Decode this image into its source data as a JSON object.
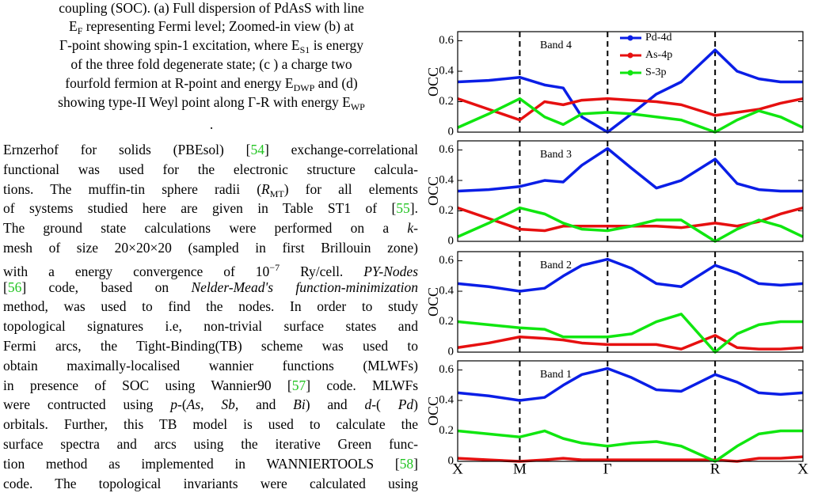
{
  "caption": {
    "lines": [
      [
        "coupling (SOC). (a) Full dispersion of PdAsS with line"
      ],
      [
        "E",
        "F",
        " representing Fermi level; Zoomed-in view (b) at"
      ],
      [
        "Γ-point showing spin-1 excitation, where E",
        "S1",
        " is energy"
      ],
      [
        "of the three fold degenerate state; (c ) a charge two"
      ],
      [
        "fourfold fermion at R-point and energy E",
        "DWP",
        " and (d)"
      ],
      [
        "showing type-II Weyl point along Γ-R with energy E",
        "WP"
      ],
      [
        "."
      ]
    ]
  },
  "paragraph": {
    "lines": [
      [
        "Ernzerhof for solids (PBEsol) [",
        "54",
        "] exchange-correlational"
      ],
      [
        "functional was used for the electronic structure calcula-"
      ],
      [
        "tions. The muffin-tin sphere radii (",
        "R",
        "MT",
        ") for all elements"
      ],
      [
        "of systems studied here are given in Table ST1 of [",
        "55",
        "]."
      ],
      [
        "The ground state calculations were performed on a ",
        "k",
        "-"
      ],
      [
        "mesh of size 20×20×20 (sampled in first Brillouin zone)"
      ],
      [
        "with a energy convergence of 10",
        "−7",
        " Ry/cell. ",
        "PY-Nodes"
      ],
      [
        "[",
        "56",
        "] code, based on ",
        "Nelder-Mead's function-minimization"
      ],
      [
        "method, was used to find the nodes. In order to study"
      ],
      [
        "topological signatures i.e, non-trivial surface states and"
      ],
      [
        "Fermi arcs, the Tight-Binding(TB) scheme was used to"
      ],
      [
        "obtain maximally-localised wannier functions (MLWFs)"
      ],
      [
        "in presence of SOC using Wannier90 [",
        "57",
        "] code. MLWFs"
      ],
      [
        "were contructed using ",
        "p",
        "-(",
        "As, Sb,",
        " and ",
        "Bi",
        ") and ",
        "d",
        "-( ",
        "Pd",
        ")"
      ],
      [
        "orbitals. Further, this TB model is used to calculate the"
      ],
      [
        "surface spectra and arcs using the iterative Green func-"
      ],
      [
        "tion method as implemented in WANNIERTOOLS [",
        "58",
        "]"
      ],
      [
        "code. The topological invariants were calculated using"
      ]
    ]
  },
  "chart_data": [
    {
      "type": "line",
      "title": "Band 4",
      "ylabel": "OCC",
      "ylim": [
        0,
        0.66
      ],
      "yticks": [
        0,
        0.2,
        0.4,
        0.6
      ],
      "xlim": [
        0,
        5.56
      ],
      "x": [
        0,
        0.5,
        1,
        1.4,
        1.7,
        2.0,
        2.414,
        2.8,
        3.2,
        3.6,
        4.146,
        4.5,
        4.85,
        5.2,
        5.56
      ],
      "series": [
        {
          "name": "Pd-4d",
          "color": "#0a1ee6",
          "values": [
            0.33,
            0.34,
            0.36,
            0.31,
            0.29,
            0.1,
            0.0,
            0.12,
            0.25,
            0.33,
            0.54,
            0.4,
            0.35,
            0.33,
            0.33
          ]
        },
        {
          "name": "As-4p",
          "color": "#e61010",
          "values": [
            0.22,
            0.15,
            0.08,
            0.2,
            0.18,
            0.21,
            0.22,
            0.21,
            0.2,
            0.18,
            0.11,
            0.13,
            0.15,
            0.19,
            0.22
          ]
        },
        {
          "name": "S-3p",
          "color": "#10e610",
          "values": [
            0.03,
            0.12,
            0.22,
            0.1,
            0.05,
            0.12,
            0.13,
            0.12,
            0.1,
            0.08,
            0.0,
            0.08,
            0.14,
            0.1,
            0.03
          ]
        }
      ]
    },
    {
      "type": "line",
      "title": "Band 3",
      "ylabel": "OCC",
      "ylim": [
        0,
        0.66
      ],
      "yticks": [
        0,
        0.2,
        0.4,
        0.6
      ],
      "xlim": [
        0,
        5.56
      ],
      "x": [
        0,
        0.5,
        1,
        1.4,
        1.7,
        2.0,
        2.414,
        2.8,
        3.2,
        3.6,
        4.146,
        4.5,
        4.85,
        5.2,
        5.56
      ],
      "series": [
        {
          "color": "#0a1ee6",
          "values": [
            0.33,
            0.34,
            0.36,
            0.4,
            0.39,
            0.5,
            0.61,
            0.48,
            0.35,
            0.4,
            0.54,
            0.38,
            0.34,
            0.33,
            0.33
          ]
        },
        {
          "color": "#e61010",
          "values": [
            0.22,
            0.15,
            0.08,
            0.07,
            0.1,
            0.1,
            0.1,
            0.1,
            0.1,
            0.09,
            0.12,
            0.1,
            0.13,
            0.18,
            0.22
          ]
        },
        {
          "color": "#10e610",
          "values": [
            0.03,
            0.12,
            0.22,
            0.18,
            0.12,
            0.08,
            0.07,
            0.1,
            0.14,
            0.14,
            0.0,
            0.08,
            0.14,
            0.1,
            0.03
          ]
        }
      ]
    },
    {
      "type": "line",
      "title": "Band 2",
      "ylabel": "OCC",
      "ylim": [
        0,
        0.66
      ],
      "yticks": [
        0,
        0.2,
        0.4,
        0.6
      ],
      "xlim": [
        0,
        5.56
      ],
      "x": [
        0,
        0.5,
        1,
        1.4,
        1.7,
        2.0,
        2.414,
        2.8,
        3.2,
        3.6,
        4.146,
        4.5,
        4.85,
        5.2,
        5.56
      ],
      "series": [
        {
          "color": "#0a1ee6",
          "values": [
            0.45,
            0.43,
            0.4,
            0.42,
            0.5,
            0.57,
            0.61,
            0.55,
            0.45,
            0.43,
            0.57,
            0.52,
            0.45,
            0.44,
            0.45
          ]
        },
        {
          "color": "#e61010",
          "values": [
            0.03,
            0.06,
            0.1,
            0.09,
            0.08,
            0.06,
            0.05,
            0.05,
            0.05,
            0.02,
            0.11,
            0.03,
            0.02,
            0.02,
            0.03
          ]
        },
        {
          "color": "#10e610",
          "values": [
            0.2,
            0.18,
            0.16,
            0.15,
            0.1,
            0.1,
            0.1,
            0.12,
            0.2,
            0.25,
            0.0,
            0.12,
            0.18,
            0.2,
            0.2
          ]
        }
      ]
    },
    {
      "type": "line",
      "title": "Band 1",
      "ylabel": "OCC",
      "ylim": [
        0,
        0.66
      ],
      "yticks": [
        0,
        0.2,
        0.4,
        0.6
      ],
      "xlim": [
        0,
        5.56
      ],
      "x": [
        0,
        0.5,
        1,
        1.4,
        1.7,
        2.0,
        2.414,
        2.8,
        3.2,
        3.6,
        4.146,
        4.5,
        4.85,
        5.2,
        5.56
      ],
      "xticks": [
        {
          "value": 0,
          "label": "X"
        },
        {
          "value": 1,
          "label": "M"
        },
        {
          "value": 2.414,
          "label": "Γ"
        },
        {
          "value": 4.146,
          "label": "R"
        },
        {
          "value": 5.56,
          "label": "X"
        }
      ],
      "series": [
        {
          "color": "#0a1ee6",
          "values": [
            0.45,
            0.43,
            0.4,
            0.42,
            0.5,
            0.57,
            0.61,
            0.55,
            0.47,
            0.46,
            0.57,
            0.52,
            0.45,
            0.44,
            0.45
          ]
        },
        {
          "color": "#e61010",
          "values": [
            0.02,
            0.01,
            0.0,
            0.01,
            0.02,
            0.01,
            0.01,
            0.01,
            0.01,
            0.01,
            0.01,
            0.0,
            0.02,
            0.02,
            0.03
          ]
        },
        {
          "color": "#10e610",
          "values": [
            0.2,
            0.18,
            0.16,
            0.2,
            0.15,
            0.12,
            0.1,
            0.12,
            0.13,
            0.1,
            0.0,
            0.1,
            0.18,
            0.2,
            0.2
          ]
        }
      ]
    }
  ]
}
